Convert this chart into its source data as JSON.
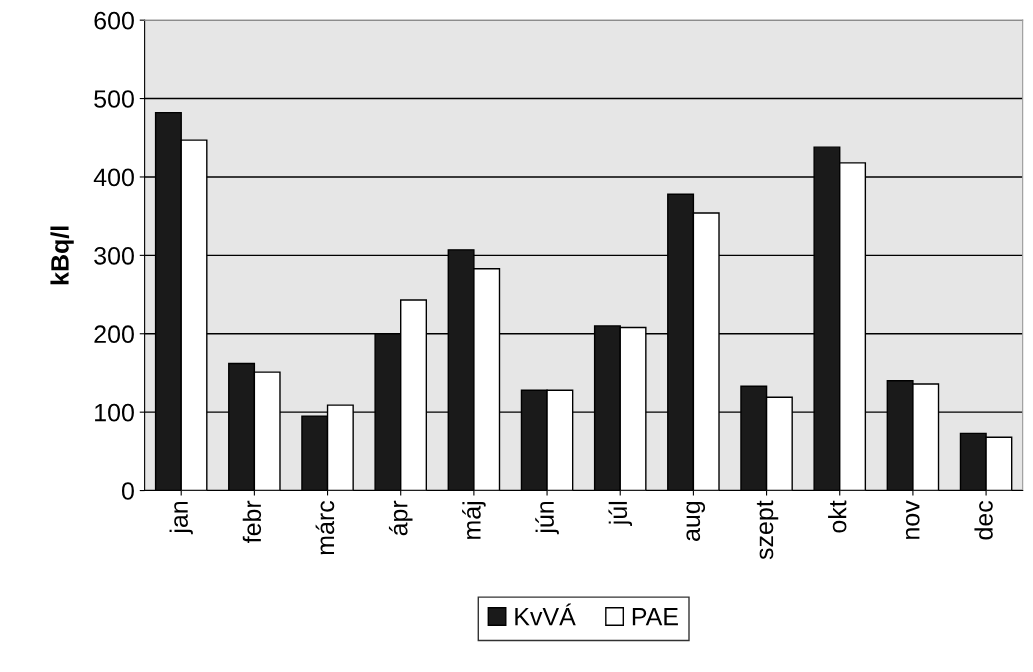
{
  "chart_data": {
    "type": "bar",
    "ylabel": "kBq/l",
    "categories": [
      "jan",
      "febr",
      "márc",
      "ápr",
      "máj",
      "jún",
      "júl",
      "aug",
      "szept",
      "okt",
      "nov",
      "dec"
    ],
    "series": [
      {
        "name": "KvVÁ",
        "color": "#1a1a1a",
        "values": [
          482,
          162,
          95,
          200,
          307,
          128,
          210,
          378,
          133,
          438,
          140,
          73
        ]
      },
      {
        "name": "PAE",
        "color": "#ffffff",
        "values": [
          447,
          151,
          109,
          243,
          283,
          128,
          208,
          354,
          119,
          418,
          136,
          68
        ]
      }
    ],
    "ylim": [
      0,
      600
    ],
    "yticks": [
      0,
      100,
      200,
      300,
      400,
      500,
      600
    ],
    "grid": "y",
    "legend": "bottom"
  }
}
